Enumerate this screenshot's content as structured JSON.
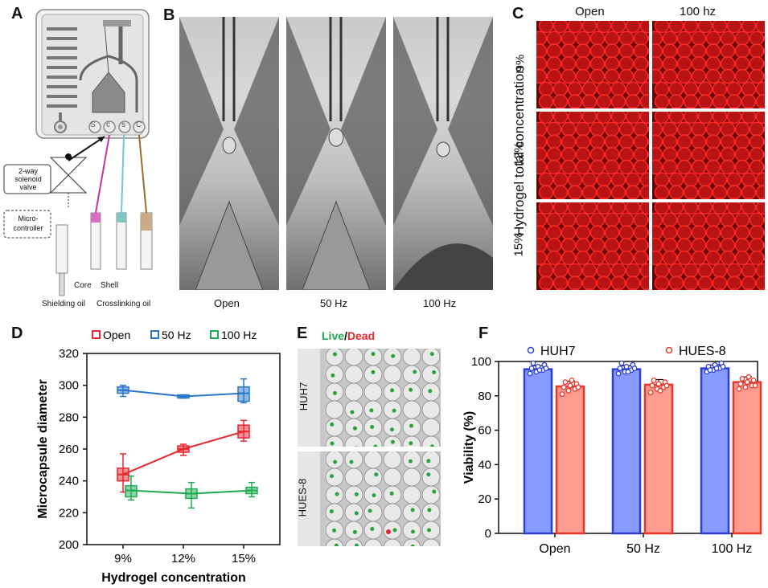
{
  "panels": {
    "A": "A",
    "B": "B",
    "C": "C",
    "D": "D",
    "E": "E",
    "F": "F"
  },
  "panelA": {
    "valve_label": "2-way solenoid valve",
    "controller_label": "Micro-controller",
    "inlet_letters": [
      "S",
      "c",
      "s",
      "C"
    ],
    "labels": {
      "core": "Core",
      "shell": "Shell",
      "shielding": "Shielding oil",
      "crosslinking": "Crosslinking oil"
    }
  },
  "panelB": {
    "captions": [
      "Open",
      "50 Hz",
      "100 Hz"
    ]
  },
  "panelC": {
    "columns": [
      "Open",
      "100 hz"
    ],
    "rows": [
      "9%",
      "12%",
      "15%"
    ],
    "ylabel": "Hydrogel total concentration"
  },
  "panelE": {
    "title_live": "Live",
    "title_sep": "/",
    "title_dead": "Dead",
    "rows": [
      "HUH7",
      "HUES-8"
    ]
  },
  "colors": {
    "open": "#e8262d",
    "hz50": "#2776c9",
    "hz100": "#1faa52",
    "huh7": "#2a3fd6",
    "hues8": "#e8362b",
    "huh7_fill": "#8a9bff",
    "hues8_fill": "#ff9c8f"
  },
  "chart_data": [
    {
      "type": "box",
      "id": "D",
      "categories": [
        "9%",
        "12%",
        "15%"
      ],
      "xlabel": "Hydrogel concentration",
      "ylabel": "Microcapsule diameter",
      "ylim": [
        200,
        320
      ],
      "yticks": [
        200,
        220,
        240,
        260,
        280,
        300,
        320
      ],
      "legend": [
        "Open",
        "50 Hz",
        "100 Hz"
      ],
      "series": [
        {
          "name": "Open",
          "median": [
            244,
            260,
            271
          ],
          "q1": [
            240,
            258,
            267
          ],
          "q3": [
            248,
            262,
            275
          ],
          "min": [
            233,
            256,
            265
          ],
          "max": [
            257,
            263,
            278
          ]
        },
        {
          "name": "50 Hz",
          "median": [
            297,
            293,
            295
          ],
          "q1": [
            295,
            292,
            290
          ],
          "q3": [
            299,
            294,
            299
          ],
          "min": [
            293,
            292,
            289
          ],
          "max": [
            300,
            294,
            304
          ]
        },
        {
          "name": "100 Hz",
          "median": [
            234,
            232,
            234
          ],
          "q1": [
            230,
            229,
            232
          ],
          "q3": [
            237,
            235,
            236
          ],
          "min": [
            228,
            223,
            230
          ],
          "max": [
            243,
            239,
            239
          ]
        }
      ]
    },
    {
      "type": "bar",
      "id": "F",
      "categories": [
        "Open",
        "50 Hz",
        "100 Hz"
      ],
      "ylabel": "Viability (%)",
      "ylim": [
        0,
        100
      ],
      "yticks": [
        0,
        20,
        40,
        60,
        80,
        100
      ],
      "legend": [
        "HUH7",
        "HUES-8"
      ],
      "series": [
        {
          "name": "HUH7",
          "values": [
            95.5,
            95.5,
            96
          ],
          "error": [
            2,
            2,
            2
          ],
          "points": [
            [
              93,
              94,
              95,
              96,
              97,
              98,
              99,
              95,
              96
            ],
            [
              93,
              94,
              95,
              96,
              97,
              98,
              99,
              94,
              96
            ],
            [
              94,
              95,
              96,
              97,
              98,
              99,
              95,
              96,
              97
            ]
          ]
        },
        {
          "name": "HUES-8",
          "values": [
            85.5,
            86.5,
            88
          ],
          "error": [
            3,
            3,
            3
          ],
          "points": [
            [
              81,
              83,
              84,
              85,
              86,
              87,
              88,
              89,
              85
            ],
            [
              82,
              84,
              85,
              86,
              87,
              88,
              89,
              83,
              86
            ],
            [
              84,
              85,
              86,
              87,
              88,
              89,
              90,
              91,
              86
            ]
          ]
        }
      ]
    }
  ]
}
